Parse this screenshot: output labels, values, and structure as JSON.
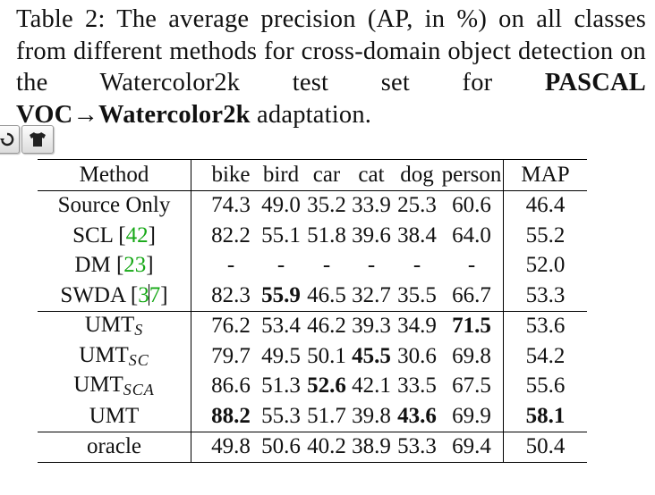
{
  "caption": {
    "part1": "Table 2:  The average precision (AP, in %) on all classes from different methods for cross-domain object detection on the Watercolor2k test set for ",
    "bold": "PASCAL VOC→Watercolor2k",
    "part2": " adaptation."
  },
  "toolbar": {
    "icons": [
      "rotate-icon",
      "shirt-icon"
    ]
  },
  "table": {
    "headers": {
      "method": "Method",
      "bike": "bike",
      "bird": "bird",
      "car": "car",
      "cat": "cat",
      "dog": "dog",
      "person": "person",
      "map": "MAP"
    },
    "rows": [
      {
        "method": "Source Only",
        "bike": "74.3",
        "bird": "49.0",
        "car": "35.2",
        "cat": "33.9",
        "dog": "25.3",
        "person": "60.6",
        "map": "46.4"
      },
      {
        "method_name": "SCL",
        "method_ref": "42",
        "bike": "82.2",
        "bird": "55.1",
        "car": "51.8",
        "cat": "39.6",
        "dog": "38.4",
        "person": "64.0",
        "map": "55.2"
      },
      {
        "method_name": "DM",
        "method_ref": "23",
        "bike": "-",
        "bird": "-",
        "car": "-",
        "cat": "-",
        "dog": "-",
        "person": "-",
        "map": "52.0"
      },
      {
        "method_name": "SWDA",
        "method_ref_a": "3",
        "method_ref_b": "7",
        "bike": "82.3",
        "bird": "55.9",
        "car": "46.5",
        "cat": "32.7",
        "dog": "35.5",
        "person": "66.7",
        "map": "53.3"
      },
      {
        "method_name": "UMT",
        "method_sub": "S",
        "bike": "76.2",
        "bird": "53.4",
        "car": "46.2",
        "cat": "39.3",
        "dog": "34.9",
        "person": "71.5",
        "map": "53.6"
      },
      {
        "method_name": "UMT",
        "method_sub": "SC",
        "bike": "79.7",
        "bird": "49.5",
        "car": "50.1",
        "cat": "45.5",
        "dog": "30.6",
        "person": "69.8",
        "map": "54.2"
      },
      {
        "method_name": "UMT",
        "method_sub": "SCA",
        "bike": "86.6",
        "bird": "51.3",
        "car": "52.6",
        "cat": "42.1",
        "dog": "33.5",
        "person": "67.5",
        "map": "55.6"
      },
      {
        "method": "UMT",
        "bike": "88.2",
        "bird": "55.3",
        "car": "51.7",
        "cat": "39.8",
        "dog": "43.6",
        "person": "69.9",
        "map": "58.1"
      },
      {
        "method": "oracle",
        "bike": "49.8",
        "bird": "50.6",
        "car": "40.2",
        "cat": "38.9",
        "dog": "53.3",
        "person": "69.4",
        "map": "50.4"
      }
    ]
  }
}
